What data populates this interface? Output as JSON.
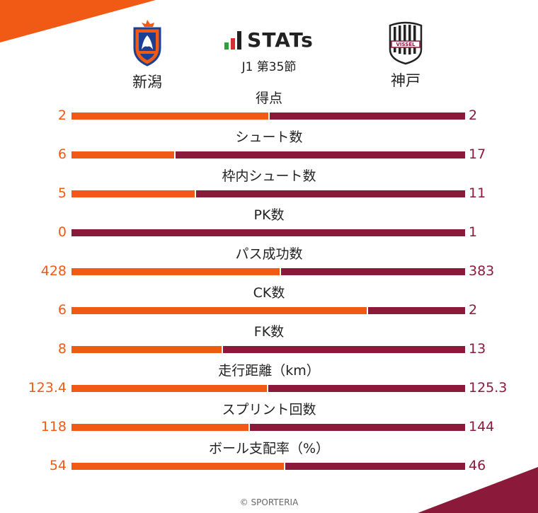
{
  "header": {
    "title": "STATs",
    "round": "J1 第35節"
  },
  "teams": {
    "home": {
      "name": "新潟",
      "color": "#f05a14",
      "emblem_icon": "albirex-emblem-icon"
    },
    "away": {
      "name": "神戸",
      "color": "#8b1a3a",
      "emblem_icon": "vissel-emblem-icon"
    }
  },
  "stats": [
    {
      "label": "得点",
      "home": "2",
      "away": "2",
      "home_share": 0.5
    },
    {
      "label": "シュート数",
      "home": "6",
      "away": "17",
      "home_share": 0.261
    },
    {
      "label": "枠内シュート数",
      "home": "5",
      "away": "11",
      "home_share": 0.313
    },
    {
      "label": "PK数",
      "home": "0",
      "away": "1",
      "home_share": 0.0
    },
    {
      "label": "パス成功数",
      "home": "428",
      "away": "383",
      "home_share": 0.528
    },
    {
      "label": "CK数",
      "home": "6",
      "away": "2",
      "home_share": 0.75
    },
    {
      "label": "FK数",
      "home": "8",
      "away": "13",
      "home_share": 0.381
    },
    {
      "label": "走行距離（km）",
      "home": "123.4",
      "away": "125.3",
      "home_share": 0.496
    },
    {
      "label": "スプリント回数",
      "home": "118",
      "away": "144",
      "home_share": 0.45
    },
    {
      "label": "ボール支配率（%）",
      "home": "54",
      "away": "46",
      "home_share": 0.54
    }
  ],
  "footer": {
    "copyright": "© SPORTERIA"
  }
}
